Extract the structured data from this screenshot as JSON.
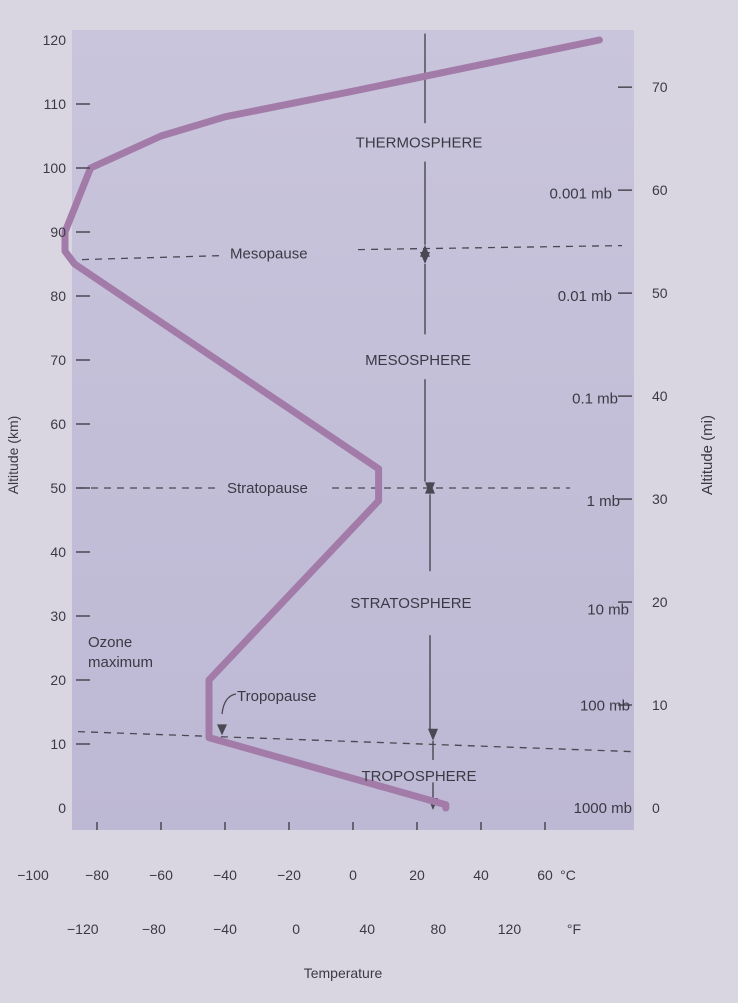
{
  "chart_data": {
    "type": "line",
    "xlabel": "Temperature",
    "ylabel": "Altitude (km)",
    "y2label": "Altitude (mi)",
    "ylim": [
      0,
      120
    ],
    "xlim_c": [
      -100,
      60
    ],
    "y_ticks": [
      0,
      10,
      20,
      30,
      40,
      50,
      60,
      70,
      80,
      90,
      100,
      110,
      120
    ],
    "y2_ticks": [
      {
        "mi": 0,
        "label": "0"
      },
      {
        "mi": 10,
        "label": "10"
      },
      {
        "mi": 20,
        "label": "20"
      },
      {
        "mi": 30,
        "label": "30"
      },
      {
        "mi": 40,
        "label": "40"
      },
      {
        "mi": 50,
        "label": "50"
      },
      {
        "mi": 60,
        "label": "60"
      },
      {
        "mi": 70,
        "label": "70"
      }
    ],
    "x_ticks_c": [
      {
        "value": -100,
        "label": "−100"
      },
      {
        "value": -80,
        "label": "−80"
      },
      {
        "value": -60,
        "label": "−60"
      },
      {
        "value": -40,
        "label": "−40"
      },
      {
        "value": -20,
        "label": "−20"
      },
      {
        "value": 0,
        "label": "0"
      },
      {
        "value": 20,
        "label": "20"
      },
      {
        "value": 40,
        "label": "40"
      },
      {
        "value": 60,
        "label": "60"
      }
    ],
    "unit_c": "°C",
    "x_ticks_f": [
      {
        "value": -120,
        "label": "−120"
      },
      {
        "value": -80,
        "label": "−80"
      },
      {
        "value": -40,
        "label": "−40"
      },
      {
        "value": 0,
        "label": "0"
      },
      {
        "value": 40,
        "label": "40"
      },
      {
        "value": 80,
        "label": "80"
      },
      {
        "value": 120,
        "label": "120"
      }
    ],
    "unit_f": "°F",
    "series": [
      {
        "x_c": [
          29,
          29,
          -45,
          -45,
          8,
          8,
          -87,
          -90,
          -90,
          -82,
          -60,
          -40,
          0,
          77
        ],
        "y_km": [
          0,
          0.5,
          11,
          20,
          48,
          53,
          85,
          87,
          90,
          100,
          105,
          108,
          112,
          120
        ]
      }
    ],
    "pressure_labels": [
      {
        "altitude_km": 0,
        "label": "1000 mb"
      },
      {
        "altitude_km": 16,
        "label": "100 mb"
      },
      {
        "altitude_km": 31,
        "label": "10 mb"
      },
      {
        "altitude_km": 48,
        "label": "1 mb"
      },
      {
        "altitude_km": 64,
        "label": "0.1 mb"
      },
      {
        "altitude_km": 80,
        "label": "0.01 mb"
      },
      {
        "altitude_km": 96,
        "label": "0.001 mb"
      }
    ],
    "layers": [
      {
        "name": "TROPOSPHERE",
        "altitude_km": 5
      },
      {
        "name": "STRATOSPHERE",
        "altitude_km": 32
      },
      {
        "name": "MESOSPHERE",
        "altitude_km": 70
      },
      {
        "name": "THERMOSPHERE",
        "altitude_km": 104
      }
    ],
    "boundaries": [
      {
        "name": "Tropopause",
        "altitude_km": 11,
        "label": "Tropopause"
      },
      {
        "name": "Stratopause",
        "altitude_km": 50,
        "label": "Stratopause"
      },
      {
        "name": "Mesopause",
        "altitude_km": 86,
        "label": "Mesopause"
      }
    ],
    "annotations": [
      {
        "line1": "Ozone",
        "line2": "maximum"
      }
    ]
  },
  "colors": {
    "background": "#d9d6e2",
    "plot_area": "#c6c2da",
    "curve": "#a27ba8",
    "text": "#3b3a44",
    "axis": "#4a4852"
  }
}
